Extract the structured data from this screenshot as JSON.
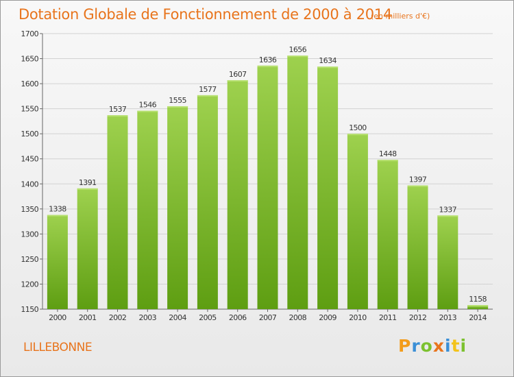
{
  "header": {
    "title": "Dotation Globale de Fonctionnement de 2000 à 2014",
    "unit_note": "(en milliers d'€)"
  },
  "footer": {
    "commune": "LILLEBONNE",
    "brand_letters": [
      "P",
      "r",
      "o",
      "x",
      "i",
      "t",
      "i"
    ],
    "brand_colors": [
      "#f39c1b",
      "#3b8fd6",
      "#7cc12f",
      "#e8741c",
      "#3b8fd6",
      "#f3c31b",
      "#7cc12f"
    ]
  },
  "colors": {
    "bar_top": "#9ed14e",
    "bar_bottom": "#5e9e12",
    "text": "#e8741c",
    "grid": "#d2d2d2"
  },
  "chart_data": {
    "type": "bar",
    "title": "Dotation Globale de Fonctionnement de 2000 à 2014",
    "subtitle": "(en milliers d'€)",
    "categories": [
      "2000",
      "2001",
      "2002",
      "2003",
      "2004",
      "2005",
      "2006",
      "2007",
      "2008",
      "2009",
      "2010",
      "2011",
      "2012",
      "2013",
      "2014"
    ],
    "values": [
      1338,
      1391,
      1537,
      1546,
      1555,
      1577,
      1607,
      1636,
      1656,
      1634,
      1500,
      1448,
      1397,
      1337,
      1158
    ],
    "ylim": [
      1150,
      1700
    ],
    "yticks": [
      1150,
      1200,
      1250,
      1300,
      1350,
      1400,
      1450,
      1500,
      1550,
      1600,
      1650,
      1700
    ],
    "grid": true,
    "xlabel": "",
    "ylabel": ""
  }
}
